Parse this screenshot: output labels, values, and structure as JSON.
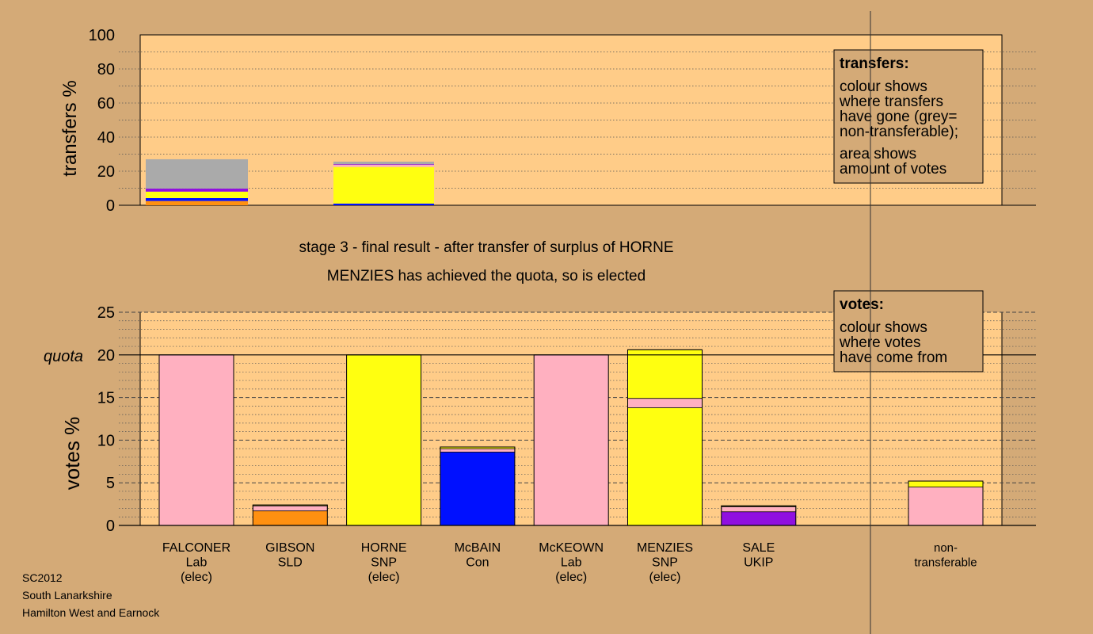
{
  "colors": {
    "background": "#d4aa77",
    "plot_bg": "#ffcc88",
    "Lab": "#ffb0c0",
    "SNP": "#ffff10",
    "SLD": "#ff9010",
    "Con": "#0010ff",
    "UKIP": "#9010e0",
    "non_transferable": "#aaaaaa"
  },
  "headline": {
    "line1": "stage 3 - final result - after transfer of surplus of HORNE",
    "line2": "MENZIES has achieved the quota, so is elected"
  },
  "footer": [
    "SC2012",
    "South Lanarkshire",
    "Hamilton West and Earnock"
  ],
  "chart_data": [
    {
      "type": "bar",
      "stacked": true,
      "ylabel": "transfers %",
      "ylim": [
        0,
        100
      ],
      "yticks": [
        0,
        20,
        40,
        60,
        80,
        100
      ],
      "grid": "dotted",
      "legend_box": {
        "title": "transfers:",
        "lines": [
          "colour shows",
          "where transfers",
          "have gone (grey=",
          "non-transferable);"
        ],
        "lines2": [
          "area shows",
          "amount of votes"
        ]
      },
      "bars": [
        {
          "source": "FALCONER",
          "segments": [
            {
              "party": "SLD",
              "value": 2.5
            },
            {
              "party": "Con",
              "value": 1.7
            },
            {
              "party": "SNP",
              "value": 3.8
            },
            {
              "party": "UKIP",
              "value": 1.8
            },
            {
              "party": "non_transferable",
              "value": 17.2
            }
          ]
        },
        {
          "source": "HORNE",
          "segments": [
            {
              "party": "Con",
              "value": 1.0
            },
            {
              "party": "SNP",
              "value": 21.5
            },
            {
              "party": "Lab",
              "value": 1.2
            },
            {
              "party": "UKIP",
              "value": 0.4
            },
            {
              "party": "non_transferable",
              "value": 1.5
            }
          ]
        }
      ]
    },
    {
      "type": "bar",
      "stacked": true,
      "ylabel": "votes %",
      "ylim": [
        0,
        25
      ],
      "yticks": [
        0,
        5,
        10,
        15,
        20,
        25
      ],
      "quota": {
        "value": 20,
        "label": "quota"
      },
      "grid": "dashed",
      "legend_box": {
        "title": "votes:",
        "lines": [
          "colour shows",
          "where votes",
          "have come from"
        ]
      },
      "categories": [
        {
          "name": "FALCONER",
          "party": "Lab",
          "status": "(elec)",
          "segments": [
            {
              "party": "Lab",
              "value": 20.0
            }
          ]
        },
        {
          "name": "GIBSON",
          "party": "SLD",
          "status": "",
          "segments": [
            {
              "party": "SLD",
              "value": 1.7
            },
            {
              "party": "Lab",
              "value": 0.6
            },
            {
              "party": "SNP",
              "value": 0.1
            }
          ]
        },
        {
          "name": "HORNE",
          "party": "SNP",
          "status": "(elec)",
          "segments": [
            {
              "party": "SNP",
              "value": 20.0
            }
          ]
        },
        {
          "name": "McBAIN",
          "party": "Con",
          "status": "",
          "segments": [
            {
              "party": "Con",
              "value": 8.6
            },
            {
              "party": "Lab",
              "value": 0.4
            },
            {
              "party": "SNP",
              "value": 0.2
            }
          ]
        },
        {
          "name": "McKEOWN",
          "party": "Lab",
          "status": "(elec)",
          "segments": [
            {
              "party": "Lab",
              "value": 20.0
            }
          ]
        },
        {
          "name": "MENZIES",
          "party": "SNP",
          "status": "(elec)",
          "segments": [
            {
              "party": "SNP",
              "value": 13.8
            },
            {
              "party": "Lab",
              "value": 1.1
            },
            {
              "party": "SNP",
              "value": 5.7
            }
          ]
        },
        {
          "name": "SALE",
          "party": "UKIP",
          "status": "",
          "segments": [
            {
              "party": "UKIP",
              "value": 1.6
            },
            {
              "party": "Lab",
              "value": 0.6
            },
            {
              "party": "SNP",
              "value": 0.1
            }
          ]
        }
      ],
      "non_transferable": {
        "label_line1": "non-",
        "label_line2": "transferable",
        "segments": [
          {
            "party": "Lab",
            "value": 4.5
          },
          {
            "party": "SNP",
            "value": 0.7
          }
        ]
      }
    }
  ]
}
